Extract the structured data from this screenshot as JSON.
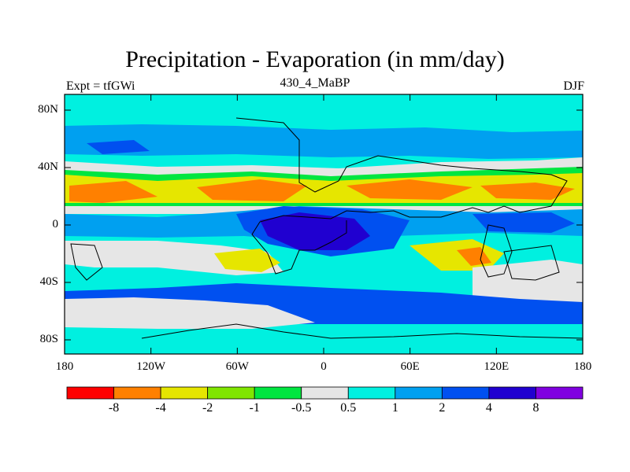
{
  "chart_data": {
    "type": "heatmap",
    "title": "Precipitation - Evaporation (in mm/day)",
    "left_label": "Expt = tfGWi",
    "center_label": "430_4_MaBP",
    "right_label": "DJF",
    "x_ticks": [
      "180",
      "120W",
      "60W",
      "0",
      "60E",
      "120E",
      "180"
    ],
    "y_ticks": [
      "80N",
      "40N",
      "0",
      "40S",
      "80S"
    ],
    "colorbar": {
      "levels": [
        "-8",
        "-4",
        "-2",
        "-1",
        "-0.5",
        "0.5",
        "1",
        "2",
        "4",
        "8"
      ],
      "colors": [
        "#ff0000",
        "#ff8000",
        "#e6e600",
        "#80e600",
        "#00e640",
        "#e6e6e6",
        "#00f0e0",
        "#00a0f0",
        "#0050f0",
        "#2000d0",
        "#8000e0"
      ]
    }
  }
}
